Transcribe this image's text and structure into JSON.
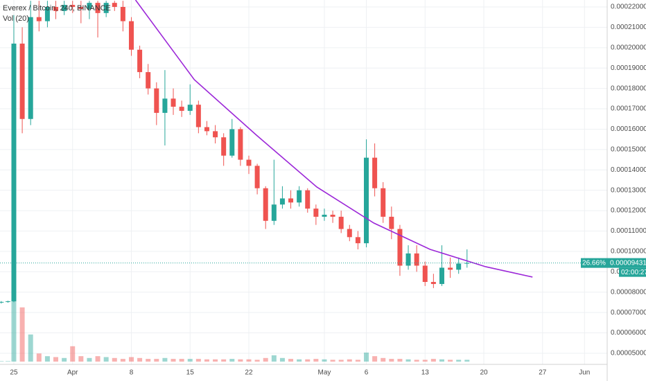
{
  "chart_data": {
    "type": "candlestick",
    "title": "Everex / Bitcoin, 240, BINANCE",
    "volume_title": "Vol (20)",
    "up_color": "#26a69a",
    "down_color": "#ef5350",
    "x": [
      -1.5,
      -0.7,
      0,
      1,
      2,
      3,
      4,
      5,
      6,
      7,
      8,
      9,
      10,
      11,
      12,
      13,
      14,
      15,
      16,
      17,
      18,
      19,
      20,
      21,
      22,
      23,
      24,
      25,
      26,
      27,
      28,
      29,
      30,
      31,
      32,
      33,
      34,
      35,
      36,
      37,
      38,
      39,
      40,
      41,
      42,
      43,
      44,
      45,
      46,
      47,
      48,
      49,
      50,
      51,
      52,
      53,
      54
    ],
    "open": [
      7.5e-05,
      7.52e-05,
      7.55e-05,
      0.000202,
      0.000165,
      0.000215,
      0.000213,
      0.00022,
      0.000218,
      0.000221,
      0.00022,
      0.000219,
      0.000222,
      0.000217,
      0.000222,
      0.00022,
      0.000213,
      0.000199,
      0.000188,
      0.00018,
      0.000168,
      0.000175,
      0.000171,
      0.000169,
      0.000172,
      0.000161,
      0.000159,
      0.000156,
      0.000147,
      0.00016,
      0.000145,
      0.000142,
      0.000131,
      0.000115,
      0.000123,
      0.000126,
      0.000124,
      0.00013,
      0.000121,
      0.000117,
      0.000118,
      0.000117,
      0.000111,
      0.000107,
      0.000104,
      0.000146,
      0.000131,
      0.000117,
      0.000111,
      9.3e-05,
      9.9e-05,
      9.3e-05,
      8.5e-05,
      8.4e-05,
      9.2e-05,
      9.1e-05,
      9.4e-05
    ],
    "high": [
      7.56e-05,
      7.58e-05,
      0.000216,
      0.00021,
      0.000223,
      0.000223,
      0.000223,
      0.000223,
      0.000223,
      0.000223,
      0.000223,
      0.000223,
      0.000223,
      0.000223,
      0.000223,
      0.000223,
      0.000215,
      0.000201,
      0.000192,
      0.000183,
      0.000189,
      0.00018,
      0.000174,
      0.000182,
      0.000174,
      0.000164,
      0.000162,
      0.000158,
      0.000165,
      0.000161,
      0.000147,
      0.000143,
      0.000132,
      0.000145,
      0.000132,
      0.00013,
      0.000132,
      0.000131,
      0.000123,
      0.000121,
      0.00012,
      0.00012,
      0.000113,
      0.00011,
      0.000155,
      0.000153,
      0.000134,
      0.000122,
      0.000113,
      0.000103,
      0.000103,
      9.5e-05,
      8.9e-05,
      0.000103,
      9.7e-05,
      9.7e-05,
      0.000101
    ],
    "low": [
      7.44e-05,
      7.48e-05,
      7.5e-05,
      0.000158,
      0.000162,
      0.000208,
      0.00021,
      0.000214,
      0.000216,
      0.000217,
      0.000212,
      0.000214,
      0.000205,
      0.000215,
      0.000218,
      0.000208,
      0.000196,
      0.000185,
      0.000177,
      0.000162,
      0.000152,
      0.000167,
      0.000166,
      0.000167,
      0.000158,
      0.000157,
      0.000153,
      0.000142,
      0.000146,
      0.000142,
      0.000138,
      0.000128,
      0.000111,
      0.000113,
      0.000121,
      0.000121,
      0.000122,
      0.000119,
      0.000113,
      0.000115,
      0.000114,
      0.000109,
      0.000105,
      0.000101,
      0.000102,
      0.000127,
      0.000114,
      0.000106,
      8.8e-05,
      9.1e-05,
      9e-05,
      8.3e-05,
      8.2e-05,
      8.3e-05,
      8.7e-05,
      8.9e-05,
      9.2e-05
    ],
    "close": [
      7.52e-05,
      7.55e-05,
      0.000202,
      0.000165,
      0.000215,
      0.000213,
      0.00022,
      0.000218,
      0.000221,
      0.00022,
      0.000219,
      0.000222,
      0.000217,
      0.000222,
      0.00022,
      0.000213,
      0.000199,
      0.000188,
      0.00018,
      0.000168,
      0.000175,
      0.000171,
      0.000169,
      0.000172,
      0.000161,
      0.000159,
      0.000156,
      0.000147,
      0.00016,
      0.000145,
      0.000142,
      0.000131,
      0.000115,
      0.000123,
      0.000126,
      0.000124,
      0.00013,
      0.000121,
      0.000117,
      0.000118,
      0.000117,
      0.000111,
      0.000107,
      0.000104,
      0.000146,
      0.000131,
      0.000117,
      0.000111,
      9.3e-05,
      9.9e-05,
      9.3e-05,
      8.5e-05,
      8.4e-05,
      9.2e-05,
      9.1e-05,
      9.4e-05,
      9.431e-05
    ],
    "volume": [
      5,
      5,
      860,
      600,
      300,
      90,
      60,
      50,
      40,
      170,
      60,
      40,
      60,
      50,
      40,
      30,
      50,
      40,
      30,
      30,
      40,
      30,
      30,
      30,
      30,
      25,
      25,
      25,
      30,
      25,
      25,
      20,
      40,
      70,
      40,
      30,
      25,
      25,
      30,
      25,
      20,
      20,
      25,
      20,
      100,
      60,
      40,
      30,
      30,
      25,
      20,
      20,
      30,
      25,
      20,
      20,
      20
    ],
    "xlim": [
      -1.65,
      70.7
    ],
    "xticks": [
      {
        "value": 0,
        "label": "25"
      },
      {
        "value": 7,
        "label": "Apr"
      },
      {
        "value": 14,
        "label": "8"
      },
      {
        "value": 21,
        "label": "15"
      },
      {
        "value": 28,
        "label": "22"
      },
      {
        "value": 37,
        "label": "May"
      },
      {
        "value": 42,
        "label": "6"
      },
      {
        "value": 49,
        "label": "13"
      },
      {
        "value": 56,
        "label": "20"
      },
      {
        "value": 63,
        "label": "27"
      },
      {
        "value": 68,
        "label": "Jun"
      }
    ],
    "ylim": [
      4.59e-05,
      0.0002234
    ],
    "yticks": [
      {
        "value": 5e-05,
        "label": "0.00005000"
      },
      {
        "value": 6e-05,
        "label": "0.00006000"
      },
      {
        "value": 7e-05,
        "label": "0.00007000"
      },
      {
        "value": 8e-05,
        "label": "0.00008000"
      },
      {
        "value": 9e-05,
        "label": "0.00009000"
      },
      {
        "value": 0.0001,
        "label": "0.00010000"
      },
      {
        "value": 0.00011,
        "label": "0.00011000"
      },
      {
        "value": 0.00012,
        "label": "0.00012000"
      },
      {
        "value": 0.00013,
        "label": "0.00013000"
      },
      {
        "value": 0.00014,
        "label": "0.00014000"
      },
      {
        "value": 0.00015,
        "label": "0.00015000"
      },
      {
        "value": 0.00016,
        "label": "0.00016000"
      },
      {
        "value": 0.00017,
        "label": "0.00017000"
      },
      {
        "value": 0.00018,
        "label": "0.00018000"
      },
      {
        "value": 0.00019,
        "label": "0.00019000"
      },
      {
        "value": 0.0002,
        "label": "0.00020000"
      },
      {
        "value": 0.00021,
        "label": "0.00021000"
      },
      {
        "value": 0.00022,
        "label": "0.00022000"
      }
    ],
    "y2lim": [
      0,
      4000
    ],
    "grid": true,
    "trendline": {
      "color": "#9c27d8",
      "x": [
        14.5,
        21.5,
        28.9,
        36.1,
        42.9,
        49.6,
        56.2,
        61.8
      ],
      "values": [
        0.0002234,
        0.0001843,
        0.0001571,
        0.0001316,
        0.0001139,
        0.000101,
        9.25e-05,
        8.74e-05
      ]
    },
    "last_price": {
      "value": 9.431e-05,
      "label": "0.00009431",
      "change": "26.66%",
      "countdown": "02:00:27",
      "color": "#26a69a"
    }
  }
}
